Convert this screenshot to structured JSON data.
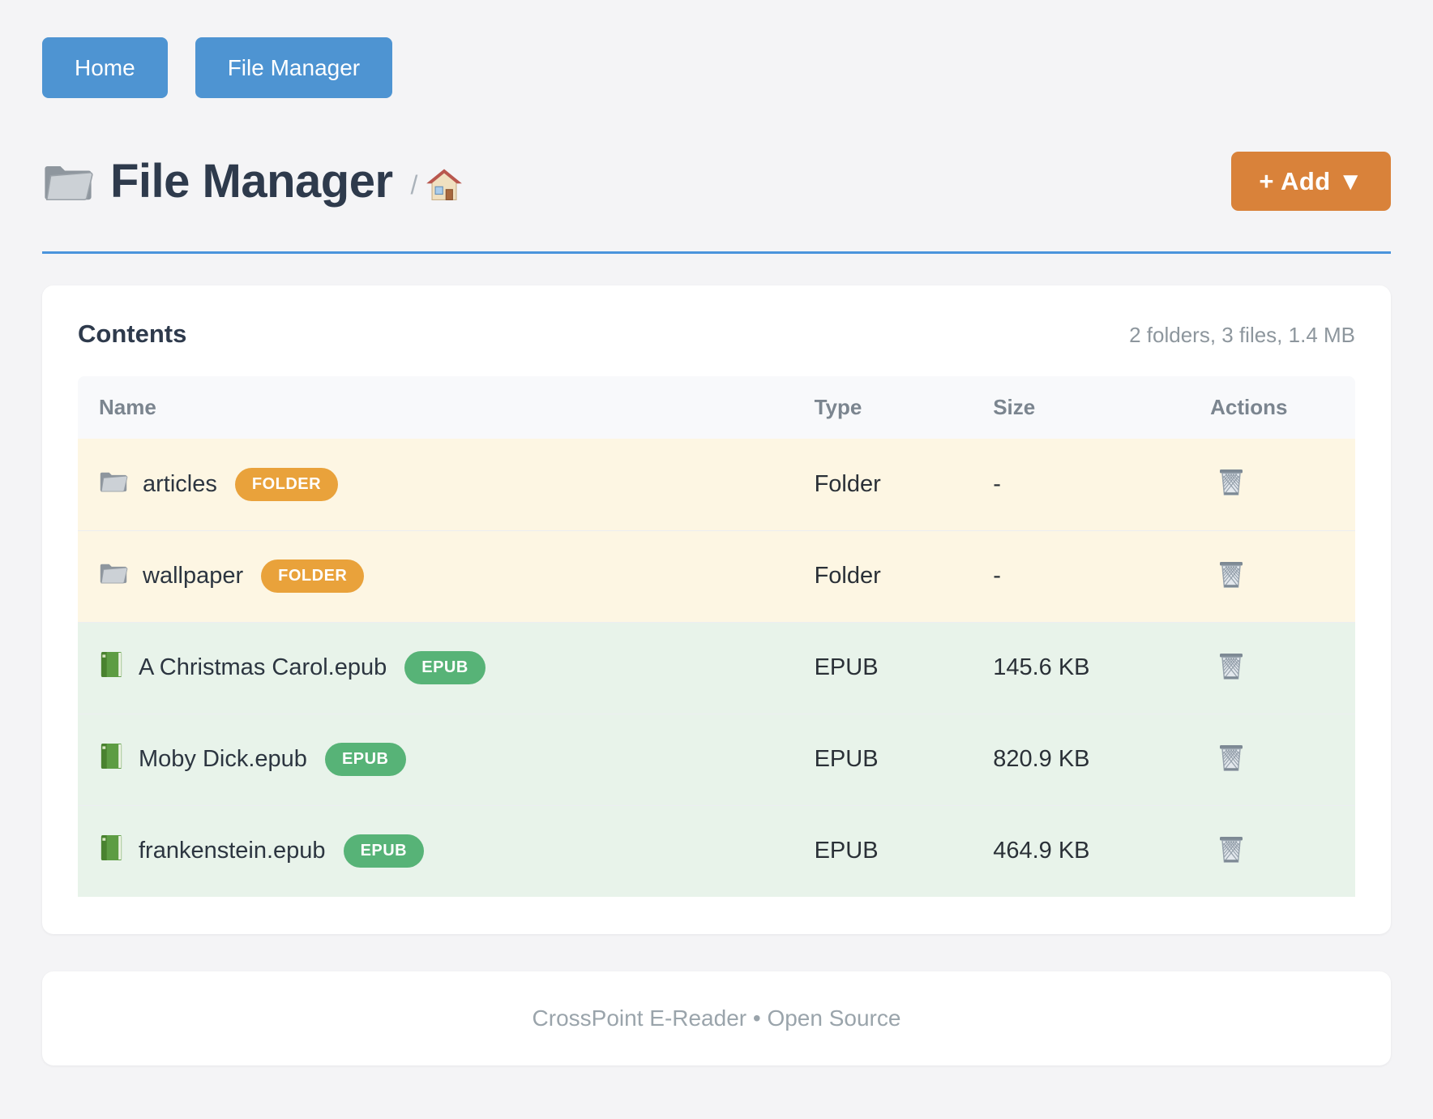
{
  "nav": {
    "buttons": [
      {
        "label": "Home"
      },
      {
        "label": "File Manager"
      }
    ]
  },
  "header": {
    "title": "File Manager",
    "path_separator": "/",
    "add_label": "+ Add ▼"
  },
  "contents": {
    "title": "Contents",
    "summary": "2 folders, 3 files, 1.4 MB",
    "columns": [
      "Name",
      "Type",
      "Size",
      "Actions"
    ],
    "rows": [
      {
        "name": "articles",
        "badge": "FOLDER",
        "kind": "folder",
        "type": "Folder",
        "size": "-"
      },
      {
        "name": "wallpaper",
        "badge": "FOLDER",
        "kind": "folder",
        "type": "Folder",
        "size": "-"
      },
      {
        "name": "A Christmas Carol.epub",
        "badge": "EPUB",
        "kind": "epub",
        "type": "EPUB",
        "size": "145.6 KB"
      },
      {
        "name": "Moby Dick.epub",
        "badge": "EPUB",
        "kind": "epub",
        "type": "EPUB",
        "size": "820.9 KB"
      },
      {
        "name": "frankenstein.epub",
        "badge": "EPUB",
        "kind": "epub",
        "type": "EPUB",
        "size": "464.9 KB"
      }
    ]
  },
  "footer": {
    "text": "CrossPoint E-Reader • Open Source"
  },
  "colors": {
    "primary_blue": "#4e94d2",
    "rule_blue": "#4a94dc",
    "accent_orange": "#d9823a",
    "folder_badge": "#e9a23b",
    "epub_badge": "#57b377",
    "folder_row_bg": "#fdf6e3",
    "epub_row_bg": "#e8f3ea"
  }
}
